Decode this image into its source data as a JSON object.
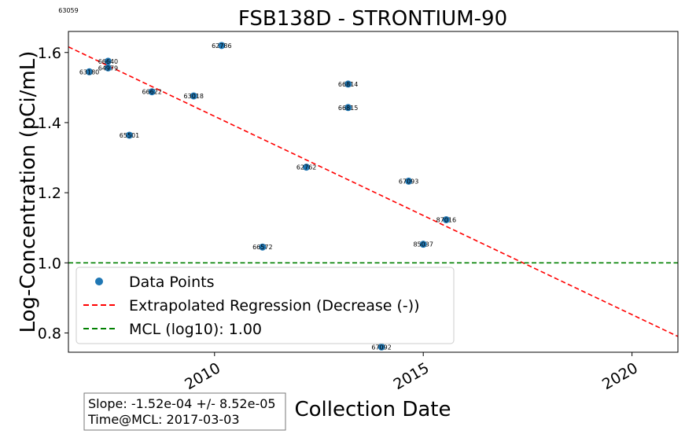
{
  "chart_data": {
    "type": "scatter",
    "title": "FSB138D - STRONTIUM-90",
    "xlabel": "Collection Date",
    "ylabel": "Log-Concentration (pCi/mL)",
    "xlim": [
      2006.5,
      2021.1
    ],
    "ylim": [
      0.745,
      1.66
    ],
    "x_ticks": [
      {
        "value": 2010,
        "label": "2010"
      },
      {
        "value": 2015,
        "label": "2015"
      },
      {
        "value": 2020,
        "label": "2020"
      }
    ],
    "y_ticks": [
      {
        "value": 0.8,
        "label": "0.8"
      },
      {
        "value": 1.0,
        "label": "1.0"
      },
      {
        "value": 1.2,
        "label": "1.2"
      },
      {
        "value": 1.4,
        "label": "1.4"
      },
      {
        "value": 1.6,
        "label": "1.6"
      }
    ],
    "grid": false,
    "series": [
      {
        "name": "Data Points",
        "color": "#1f77b4",
        "points": [
          {
            "x": 2007.0,
            "y": 1.545,
            "label": "63180"
          },
          {
            "x": 2007.45,
            "y": 1.575,
            "label": "66640"
          },
          {
            "x": 2007.45,
            "y": 1.556,
            "label": "64979"
          },
          {
            "x": 2007.96,
            "y": 1.364,
            "label": "65501"
          },
          {
            "x": 2008.5,
            "y": 1.488,
            "label": "66622"
          },
          {
            "x": 2009.5,
            "y": 1.476,
            "label": "63018"
          },
          {
            "x": 2010.17,
            "y": 1.62,
            "label": "62786"
          },
          {
            "x": 2011.15,
            "y": 1.045,
            "label": "66572"
          },
          {
            "x": 2012.2,
            "y": 1.273,
            "label": "62762"
          },
          {
            "x": 2013.2,
            "y": 1.51,
            "label": "66814"
          },
          {
            "x": 2013.2,
            "y": 1.443,
            "label": "66815"
          },
          {
            "x": 2014.0,
            "y": 0.76,
            "label": "67092"
          },
          {
            "x": 2014.65,
            "y": 1.233,
            "label": "67093"
          },
          {
            "x": 2015.0,
            "y": 1.053,
            "label": "85037"
          },
          {
            "x": 2015.55,
            "y": 1.123,
            "label": "87016"
          }
        ]
      },
      {
        "name": "Extrapolated Regression (Decrease (-))",
        "color": "#ff0000",
        "style": "dashed",
        "line": [
          [
            2006.5,
            1.616
          ],
          [
            2021.1,
            0.79
          ]
        ]
      },
      {
        "name": "MCL (log10): 1.00",
        "color": "#008000",
        "style": "dashed",
        "hline": 1.0
      }
    ],
    "legend_position": "lower-left",
    "stray_label": {
      "text": "63059"
    },
    "annotation": {
      "line1": "Slope: -1.52e-04 +/- 8.52e-05",
      "line2": "Time@MCL: 2017-03-03"
    }
  }
}
